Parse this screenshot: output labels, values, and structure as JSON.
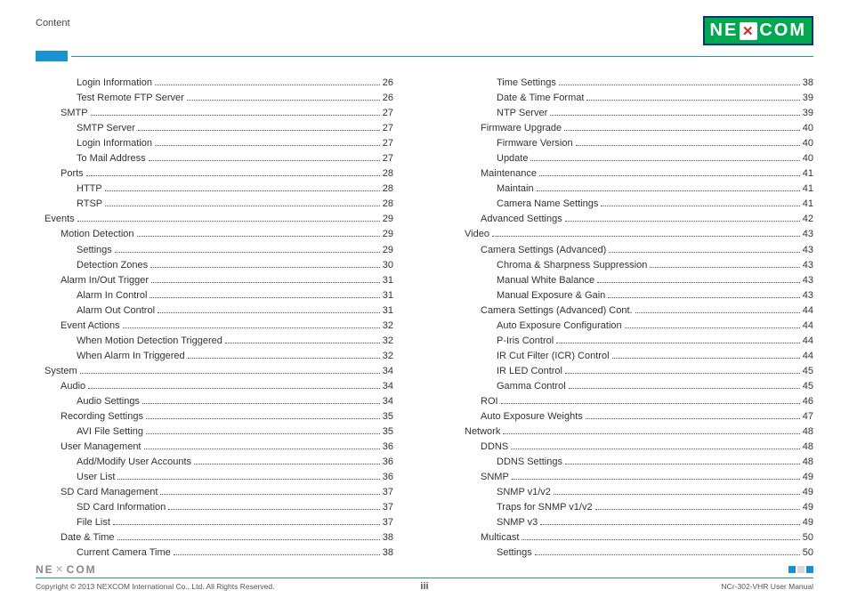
{
  "header": {
    "section_label": "Content",
    "logo_text_left": "NE",
    "logo_text_right": "COM"
  },
  "footer": {
    "copyright": "Copyright © 2013 NEXCOM International Co., Ltd. All Rights Reserved.",
    "page_number": "iii",
    "doc_ref": "NCr-302-VHR User Manual",
    "mark_colors": [
      "#1a92cf",
      "#d9d9d9",
      "#1a92cf"
    ]
  },
  "colors": {
    "accent": "#1a92cf",
    "logo_bg": "#00a84f",
    "logo_border": "#003a70"
  },
  "toc_left": [
    {
      "level": 2,
      "title": "Login Information",
      "page": "26"
    },
    {
      "level": 2,
      "title": "Test Remote FTP Server",
      "page": "26"
    },
    {
      "level": 1,
      "title": "SMTP",
      "page": "27"
    },
    {
      "level": 2,
      "title": "SMTP Server",
      "page": "27"
    },
    {
      "level": 2,
      "title": "Login Information",
      "page": "27"
    },
    {
      "level": 2,
      "title": "To Mail Address",
      "page": "27"
    },
    {
      "level": 1,
      "title": "Ports",
      "page": "28"
    },
    {
      "level": 2,
      "title": "HTTP",
      "page": "28"
    },
    {
      "level": 2,
      "title": "RTSP",
      "page": "28"
    },
    {
      "level": 0,
      "title": "Events",
      "page": "29"
    },
    {
      "level": 1,
      "title": "Motion Detection",
      "page": "29"
    },
    {
      "level": 2,
      "title": "Settings",
      "page": "29"
    },
    {
      "level": 2,
      "title": "Detection Zones",
      "page": "30"
    },
    {
      "level": 1,
      "title": "Alarm In/Out Trigger",
      "page": "31"
    },
    {
      "level": 2,
      "title": "Alarm In Control",
      "page": "31"
    },
    {
      "level": 2,
      "title": "Alarm Out Control",
      "page": "31"
    },
    {
      "level": 1,
      "title": "Event Actions",
      "page": "32"
    },
    {
      "level": 2,
      "title": "When Motion Detection Triggered",
      "page": "32"
    },
    {
      "level": 2,
      "title": "When Alarm In Triggered",
      "page": "32"
    },
    {
      "level": 0,
      "title": "System",
      "page": "34"
    },
    {
      "level": 1,
      "title": "Audio",
      "page": "34"
    },
    {
      "level": 2,
      "title": "Audio Settings",
      "page": "34"
    },
    {
      "level": 1,
      "title": "Recording Settings",
      "page": "35"
    },
    {
      "level": 2,
      "title": "AVI File Setting",
      "page": "35"
    },
    {
      "level": 1,
      "title": "User Management",
      "page": "36"
    },
    {
      "level": 2,
      "title": "Add/Modify User Accounts",
      "page": "36"
    },
    {
      "level": 2,
      "title": "User List",
      "page": "36"
    },
    {
      "level": 1,
      "title": "SD Card Management",
      "page": "37"
    },
    {
      "level": 2,
      "title": "SD Card Information",
      "page": "37"
    },
    {
      "level": 2,
      "title": "File List",
      "page": "37"
    },
    {
      "level": 1,
      "title": "Date & Time",
      "page": "38"
    },
    {
      "level": 2,
      "title": "Current Camera Time",
      "page": "38"
    }
  ],
  "toc_right": [
    {
      "level": 2,
      "title": "Time Settings",
      "page": "38"
    },
    {
      "level": 2,
      "title": "Date & Time Format",
      "page": "39"
    },
    {
      "level": 2,
      "title": "NTP Server",
      "page": "39"
    },
    {
      "level": 1,
      "title": "Firmware Upgrade",
      "page": "40"
    },
    {
      "level": 2,
      "title": "Firmware Version",
      "page": "40"
    },
    {
      "level": 2,
      "title": "Update",
      "page": "40"
    },
    {
      "level": 1,
      "title": "Maintenance",
      "page": "41"
    },
    {
      "level": 2,
      "title": "Maintain",
      "page": "41"
    },
    {
      "level": 2,
      "title": "Camera Name Settings",
      "page": "41"
    },
    {
      "level": 1,
      "title": "Advanced Settings",
      "page": "42"
    },
    {
      "level": 0,
      "title": "Video",
      "page": "43"
    },
    {
      "level": 1,
      "title": "Camera Settings (Advanced)",
      "page": "43"
    },
    {
      "level": 2,
      "title": "Chroma & Sharpness Suppression",
      "page": "43"
    },
    {
      "level": 2,
      "title": "Manual White Balance",
      "page": "43"
    },
    {
      "level": 2,
      "title": "Manual Exposure & Gain",
      "page": "43"
    },
    {
      "level": 1,
      "title": "Camera Settings (Advanced) Cont.",
      "page": "44"
    },
    {
      "level": 2,
      "title": "Auto Exposure Configuration",
      "page": "44"
    },
    {
      "level": 2,
      "title": "P-Iris Control",
      "page": "44"
    },
    {
      "level": 2,
      "title": "IR Cut Filter (ICR) Control",
      "page": "44"
    },
    {
      "level": 2,
      "title": "IR LED Control",
      "page": "45"
    },
    {
      "level": 2,
      "title": "Gamma Control",
      "page": "45"
    },
    {
      "level": 1,
      "title": "ROI",
      "page": "46"
    },
    {
      "level": 1,
      "title": "Auto Exposure Weights",
      "page": "47"
    },
    {
      "level": 0,
      "title": "Network",
      "page": "48"
    },
    {
      "level": 1,
      "title": "DDNS",
      "page": "48"
    },
    {
      "level": 2,
      "title": "DDNS Settings",
      "page": "48"
    },
    {
      "level": 1,
      "title": "SNMP",
      "page": "49"
    },
    {
      "level": 2,
      "title": "SNMP v1/v2",
      "page": "49"
    },
    {
      "level": 2,
      "title": "Traps for SNMP v1/v2",
      "page": "49"
    },
    {
      "level": 2,
      "title": "SNMP v3",
      "page": "49"
    },
    {
      "level": 1,
      "title": "Multicast",
      "page": "50"
    },
    {
      "level": 2,
      "title": "Settings",
      "page": "50"
    }
  ]
}
